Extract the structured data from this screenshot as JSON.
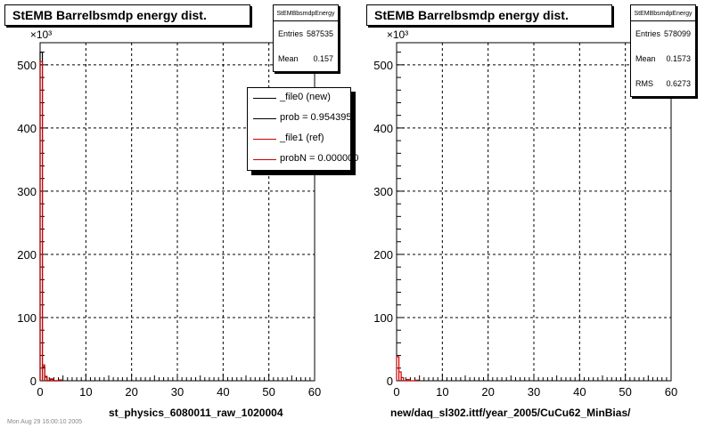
{
  "chart_data": [
    {
      "type": "histogram",
      "title": "StEMB Barrelbsmdp energy dist.",
      "xlabel": "st_physics_6080011_raw_1020004",
      "ylabel": "",
      "y_multiplier": "×10³",
      "xlim": [
        0,
        60
      ],
      "ylim": [
        0,
        535
      ],
      "xticks": [
        0,
        10,
        20,
        30,
        40,
        50,
        60
      ],
      "yticks": [
        0,
        100,
        200,
        300,
        400,
        500
      ],
      "grid": true,
      "stats": {
        "title": "StEMBbsmdpEnergy",
        "entries": "587535",
        "mean": "0.157",
        "rms": ""
      },
      "legend": {
        "placement": "top-right",
        "entries": [
          {
            "label": "_file0 (new)",
            "color": "#000000"
          },
          {
            "label": "prob = 0.954395",
            "color": "#000000"
          },
          {
            "label": "_file1 (ref)",
            "color": "#cc0000"
          },
          {
            "label": "probN = 0.000000",
            "color": "#cc0000"
          }
        ]
      },
      "series": [
        {
          "name": "_file0 (new)",
          "color": "#000000",
          "x": [
            0.25,
            0.75,
            1.25,
            2.5,
            4.5
          ],
          "y": [
            520,
            22,
            6,
            2.5,
            1.2
          ]
        },
        {
          "name": "_file1 (ref)",
          "color": "#cc0000",
          "x": [
            0.25,
            0.75,
            1.25,
            2.5,
            4.5
          ],
          "y": [
            505,
            25,
            7,
            3,
            1.3
          ]
        }
      ]
    },
    {
      "type": "histogram",
      "title": "StEMB Barrelbsmdp energy dist.",
      "xlabel": "new/daq_sl302.ittf/year_2005/CuCu62_MinBias/",
      "ylabel": "",
      "y_multiplier": "×10³",
      "xlim": [
        0,
        60
      ],
      "ylim": [
        0,
        535
      ],
      "xticks": [
        0,
        10,
        20,
        30,
        40,
        50,
        60
      ],
      "yticks": [
        0,
        100,
        200,
        300,
        400,
        500
      ],
      "grid": true,
      "stats": {
        "title": "StEMBbsmdpEnergy",
        "entries": "578099",
        "mean": "0.1573",
        "rms": "0.6273"
      },
      "series": [
        {
          "name": "",
          "color": "#cc0000",
          "x": [
            0.25,
            0.75,
            1.25,
            2.5,
            4.5
          ],
          "y": [
            38,
            14,
            5,
            2,
            1
          ]
        }
      ]
    }
  ],
  "stats_labels": {
    "entries": "Entries",
    "mean": "Mean",
    "rms": "RMS"
  },
  "footer": "Mon Aug 29 16:00:10 2005"
}
